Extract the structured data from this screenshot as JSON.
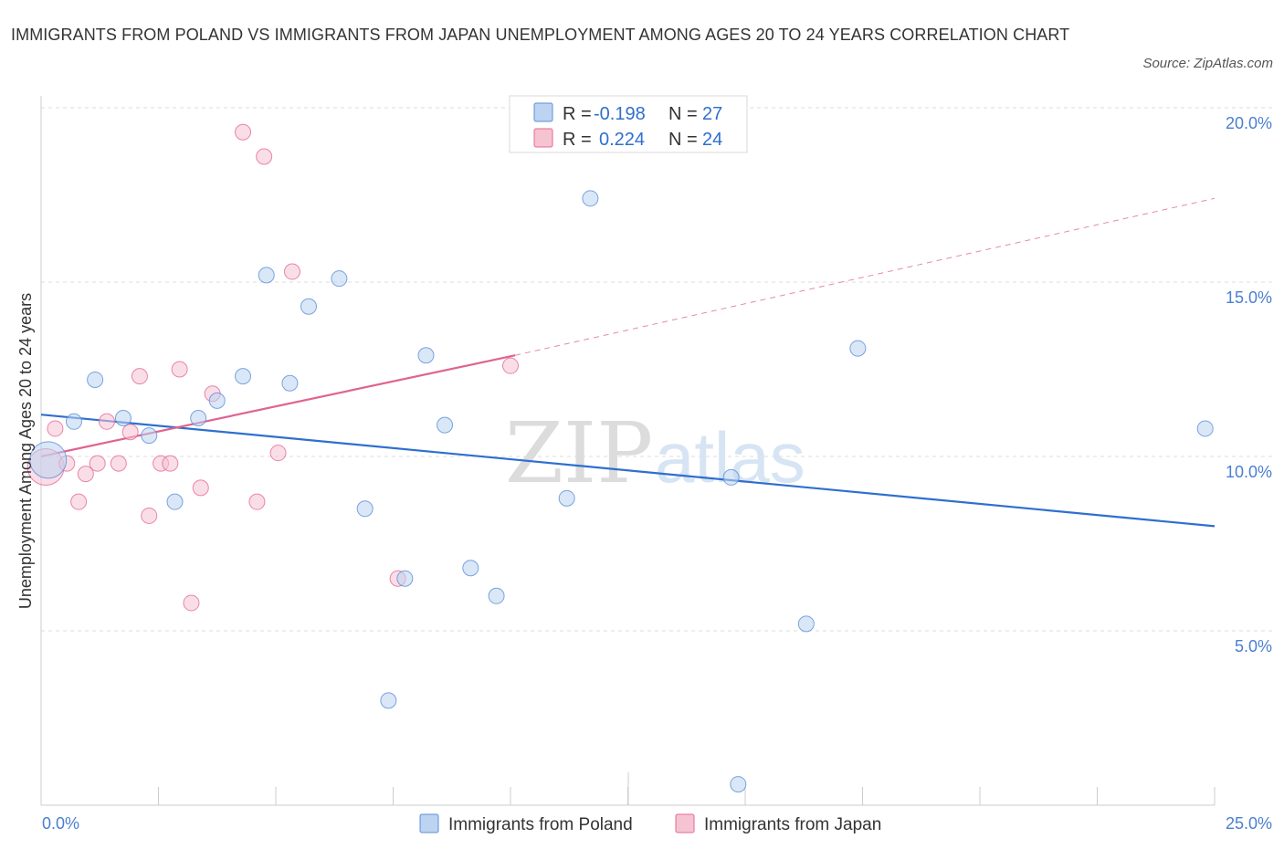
{
  "chart_data": {
    "type": "scatter",
    "title": "IMMIGRANTS FROM POLAND VS IMMIGRANTS FROM JAPAN UNEMPLOYMENT AMONG AGES 20 TO 24 YEARS CORRELATION CHART",
    "source": "Source: ZipAtlas.com",
    "xlabel": "",
    "ylabel": "Unemployment Among Ages 20 to 24 years",
    "xlim": [
      0,
      25
    ],
    "ylim": [
      0,
      20
    ],
    "x_tick_labels": [
      "0.0%",
      "25.0%"
    ],
    "y_tick_labels": [
      "20.0%",
      "15.0%",
      "10.0%",
      "5.0%"
    ],
    "y_ticks": [
      20,
      15,
      10,
      5
    ],
    "watermark": [
      "ZIP",
      "atlas"
    ],
    "legend": [
      {
        "r_label": "R =",
        "r_value": "-0.198",
        "n_label": "N =",
        "n_value": "27"
      },
      {
        "r_label": "R =",
        "r_value": "0.224",
        "n_label": "N =",
        "n_value": "24"
      }
    ],
    "series": [
      {
        "name": "Immigrants from Poland",
        "color": "#5b8fd9",
        "fill": "#bcd3f1",
        "trend": {
          "x": [
            0,
            25
          ],
          "y": [
            11.2,
            8.0
          ],
          "style": "solid"
        },
        "points": [
          {
            "x": 0.15,
            "y": 9.9,
            "big": true
          },
          {
            "x": 0.7,
            "y": 11.0
          },
          {
            "x": 1.15,
            "y": 12.2
          },
          {
            "x": 1.75,
            "y": 11.1
          },
          {
            "x": 2.3,
            "y": 10.6
          },
          {
            "x": 2.85,
            "y": 8.7
          },
          {
            "x": 3.35,
            "y": 11.1
          },
          {
            "x": 3.75,
            "y": 11.6
          },
          {
            "x": 4.3,
            "y": 12.3
          },
          {
            "x": 4.8,
            "y": 15.2
          },
          {
            "x": 5.3,
            "y": 12.1
          },
          {
            "x": 5.7,
            "y": 14.3
          },
          {
            "x": 6.35,
            "y": 15.1
          },
          {
            "x": 6.9,
            "y": 8.5
          },
          {
            "x": 7.4,
            "y": 3.0
          },
          {
            "x": 7.75,
            "y": 6.5
          },
          {
            "x": 8.2,
            "y": 12.9
          },
          {
            "x": 8.6,
            "y": 10.9
          },
          {
            "x": 9.15,
            "y": 6.8
          },
          {
            "x": 9.7,
            "y": 6.0
          },
          {
            "x": 11.2,
            "y": 8.8
          },
          {
            "x": 11.7,
            "y": 17.4
          },
          {
            "x": 14.7,
            "y": 9.4
          },
          {
            "x": 14.85,
            "y": 0.6
          },
          {
            "x": 16.3,
            "y": 5.2
          },
          {
            "x": 17.4,
            "y": 13.1
          },
          {
            "x": 24.8,
            "y": 10.8
          }
        ]
      },
      {
        "name": "Immigrants from Japan",
        "color": "#e56a92",
        "fill": "#f6c3d3",
        "trend": {
          "x": [
            0,
            10.1,
            25
          ],
          "y": [
            10.0,
            12.9,
            17.4
          ],
          "style": "solid-then-dashed"
        },
        "points": [
          {
            "x": 0.1,
            "y": 9.7,
            "big": true
          },
          {
            "x": 0.3,
            "y": 10.8
          },
          {
            "x": 0.55,
            "y": 9.8
          },
          {
            "x": 0.8,
            "y": 8.7
          },
          {
            "x": 0.95,
            "y": 9.5
          },
          {
            "x": 1.2,
            "y": 9.8
          },
          {
            "x": 1.4,
            "y": 11.0
          },
          {
            "x": 1.65,
            "y": 9.8
          },
          {
            "x": 1.9,
            "y": 10.7
          },
          {
            "x": 2.1,
            "y": 12.3
          },
          {
            "x": 2.3,
            "y": 8.3
          },
          {
            "x": 2.55,
            "y": 9.8
          },
          {
            "x": 2.75,
            "y": 9.8
          },
          {
            "x": 2.95,
            "y": 12.5
          },
          {
            "x": 3.2,
            "y": 5.8
          },
          {
            "x": 3.4,
            "y": 9.1
          },
          {
            "x": 3.65,
            "y": 11.8
          },
          {
            "x": 4.3,
            "y": 19.3
          },
          {
            "x": 4.6,
            "y": 8.7
          },
          {
            "x": 4.75,
            "y": 18.6
          },
          {
            "x": 5.05,
            "y": 10.1
          },
          {
            "x": 5.35,
            "y": 15.3
          },
          {
            "x": 7.6,
            "y": 6.5
          },
          {
            "x": 10.0,
            "y": 12.6
          }
        ]
      }
    ]
  }
}
